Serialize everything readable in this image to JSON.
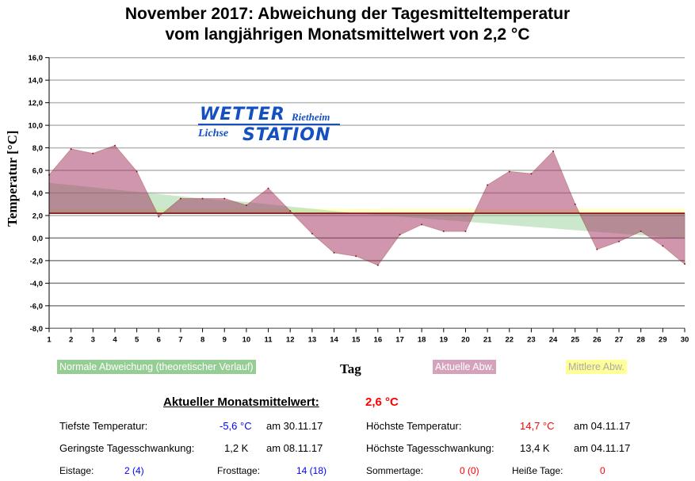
{
  "title_line1": "November 2017: Abweichung der Tagesmitteltemperatur",
  "title_line2": "vom langjährigen Monatsmittelwert von 2,2 °C",
  "logo": {
    "word1": "WETTER",
    "word2": "Rietheim",
    "word3": "Lichse",
    "word4": "STATION"
  },
  "chart_data": {
    "type": "area",
    "xlabel": "Tag",
    "ylabel": "Temperatur [°C]",
    "ylim": [
      -8,
      16
    ],
    "xlim": [
      1,
      30
    ],
    "yticks": [
      "16,0",
      "14,0",
      "12,0",
      "10,0",
      "8,0",
      "6,0",
      "4,0",
      "2,0",
      "0,0",
      "-2,0",
      "-4,0",
      "-6,0",
      "-8,0"
    ],
    "ytick_values": [
      16,
      14,
      12,
      10,
      8,
      6,
      4,
      2,
      0,
      -2,
      -4,
      -6,
      -8
    ],
    "x": [
      1,
      2,
      3,
      4,
      5,
      6,
      7,
      8,
      9,
      10,
      11,
      12,
      13,
      14,
      15,
      16,
      17,
      18,
      19,
      20,
      21,
      22,
      23,
      24,
      25,
      26,
      27,
      28,
      29,
      30
    ],
    "baseline": 2.2,
    "series": [
      {
        "name": "Normale Abweichung (theoretischer Verlauf)",
        "color": "#8fcc8f",
        "values": [
          4.9,
          4.7,
          4.5,
          4.3,
          4.1,
          3.9,
          3.7,
          3.5,
          3.35,
          3.2,
          3.0,
          2.8,
          2.6,
          2.4,
          2.2,
          2.05,
          1.9,
          1.75,
          1.6,
          1.45,
          1.3,
          1.15,
          1.0,
          0.85,
          0.7,
          0.55,
          0.4,
          0.25,
          0.1,
          0.0
        ]
      },
      {
        "name": "Aktuelle Abw.",
        "color": "#d4a3bb",
        "values": [
          5.6,
          7.9,
          7.5,
          8.2,
          5.9,
          1.9,
          3.5,
          3.5,
          3.5,
          2.9,
          4.4,
          2.4,
          0.4,
          -1.3,
          -1.6,
          -2.4,
          0.3,
          1.2,
          0.6,
          0.6,
          4.7,
          5.9,
          5.7,
          7.7,
          3.0,
          -1.0,
          -0.3,
          0.6,
          -0.7,
          -2.3
        ]
      },
      {
        "name": "Mittlere Abw.",
        "color": "#ffff99",
        "value": 2.6
      }
    ]
  },
  "stats": {
    "monthly_label": "Aktueller Monatsmittelwert:",
    "monthly_value": "2,6 °C",
    "min_label": "Tiefste Temperatur:",
    "min_value": "-5,6 °C",
    "min_date": "am 30.11.17",
    "max_label": "Höchste Temperatur:",
    "max_value": "14,7 °C",
    "max_date": "am 04.11.17",
    "minrange_label": "Geringste Tagesschwankung:",
    "minrange_value": "1,2 K",
    "minrange_date": "am 08.11.17",
    "maxrange_label": "Höchste Tagesschwankung:",
    "maxrange_value": "13,4 K",
    "maxrange_date": "am 04.11.17",
    "eis_label": "Eistage:",
    "eis_value": "2 (4)",
    "frost_label": "Frosttage:",
    "frost_value": "14 (18)",
    "sommer_label": "Sommertage:",
    "sommer_value": "0 (0)",
    "heiss_label": "Heiße Tage:",
    "heiss_value": "0"
  }
}
